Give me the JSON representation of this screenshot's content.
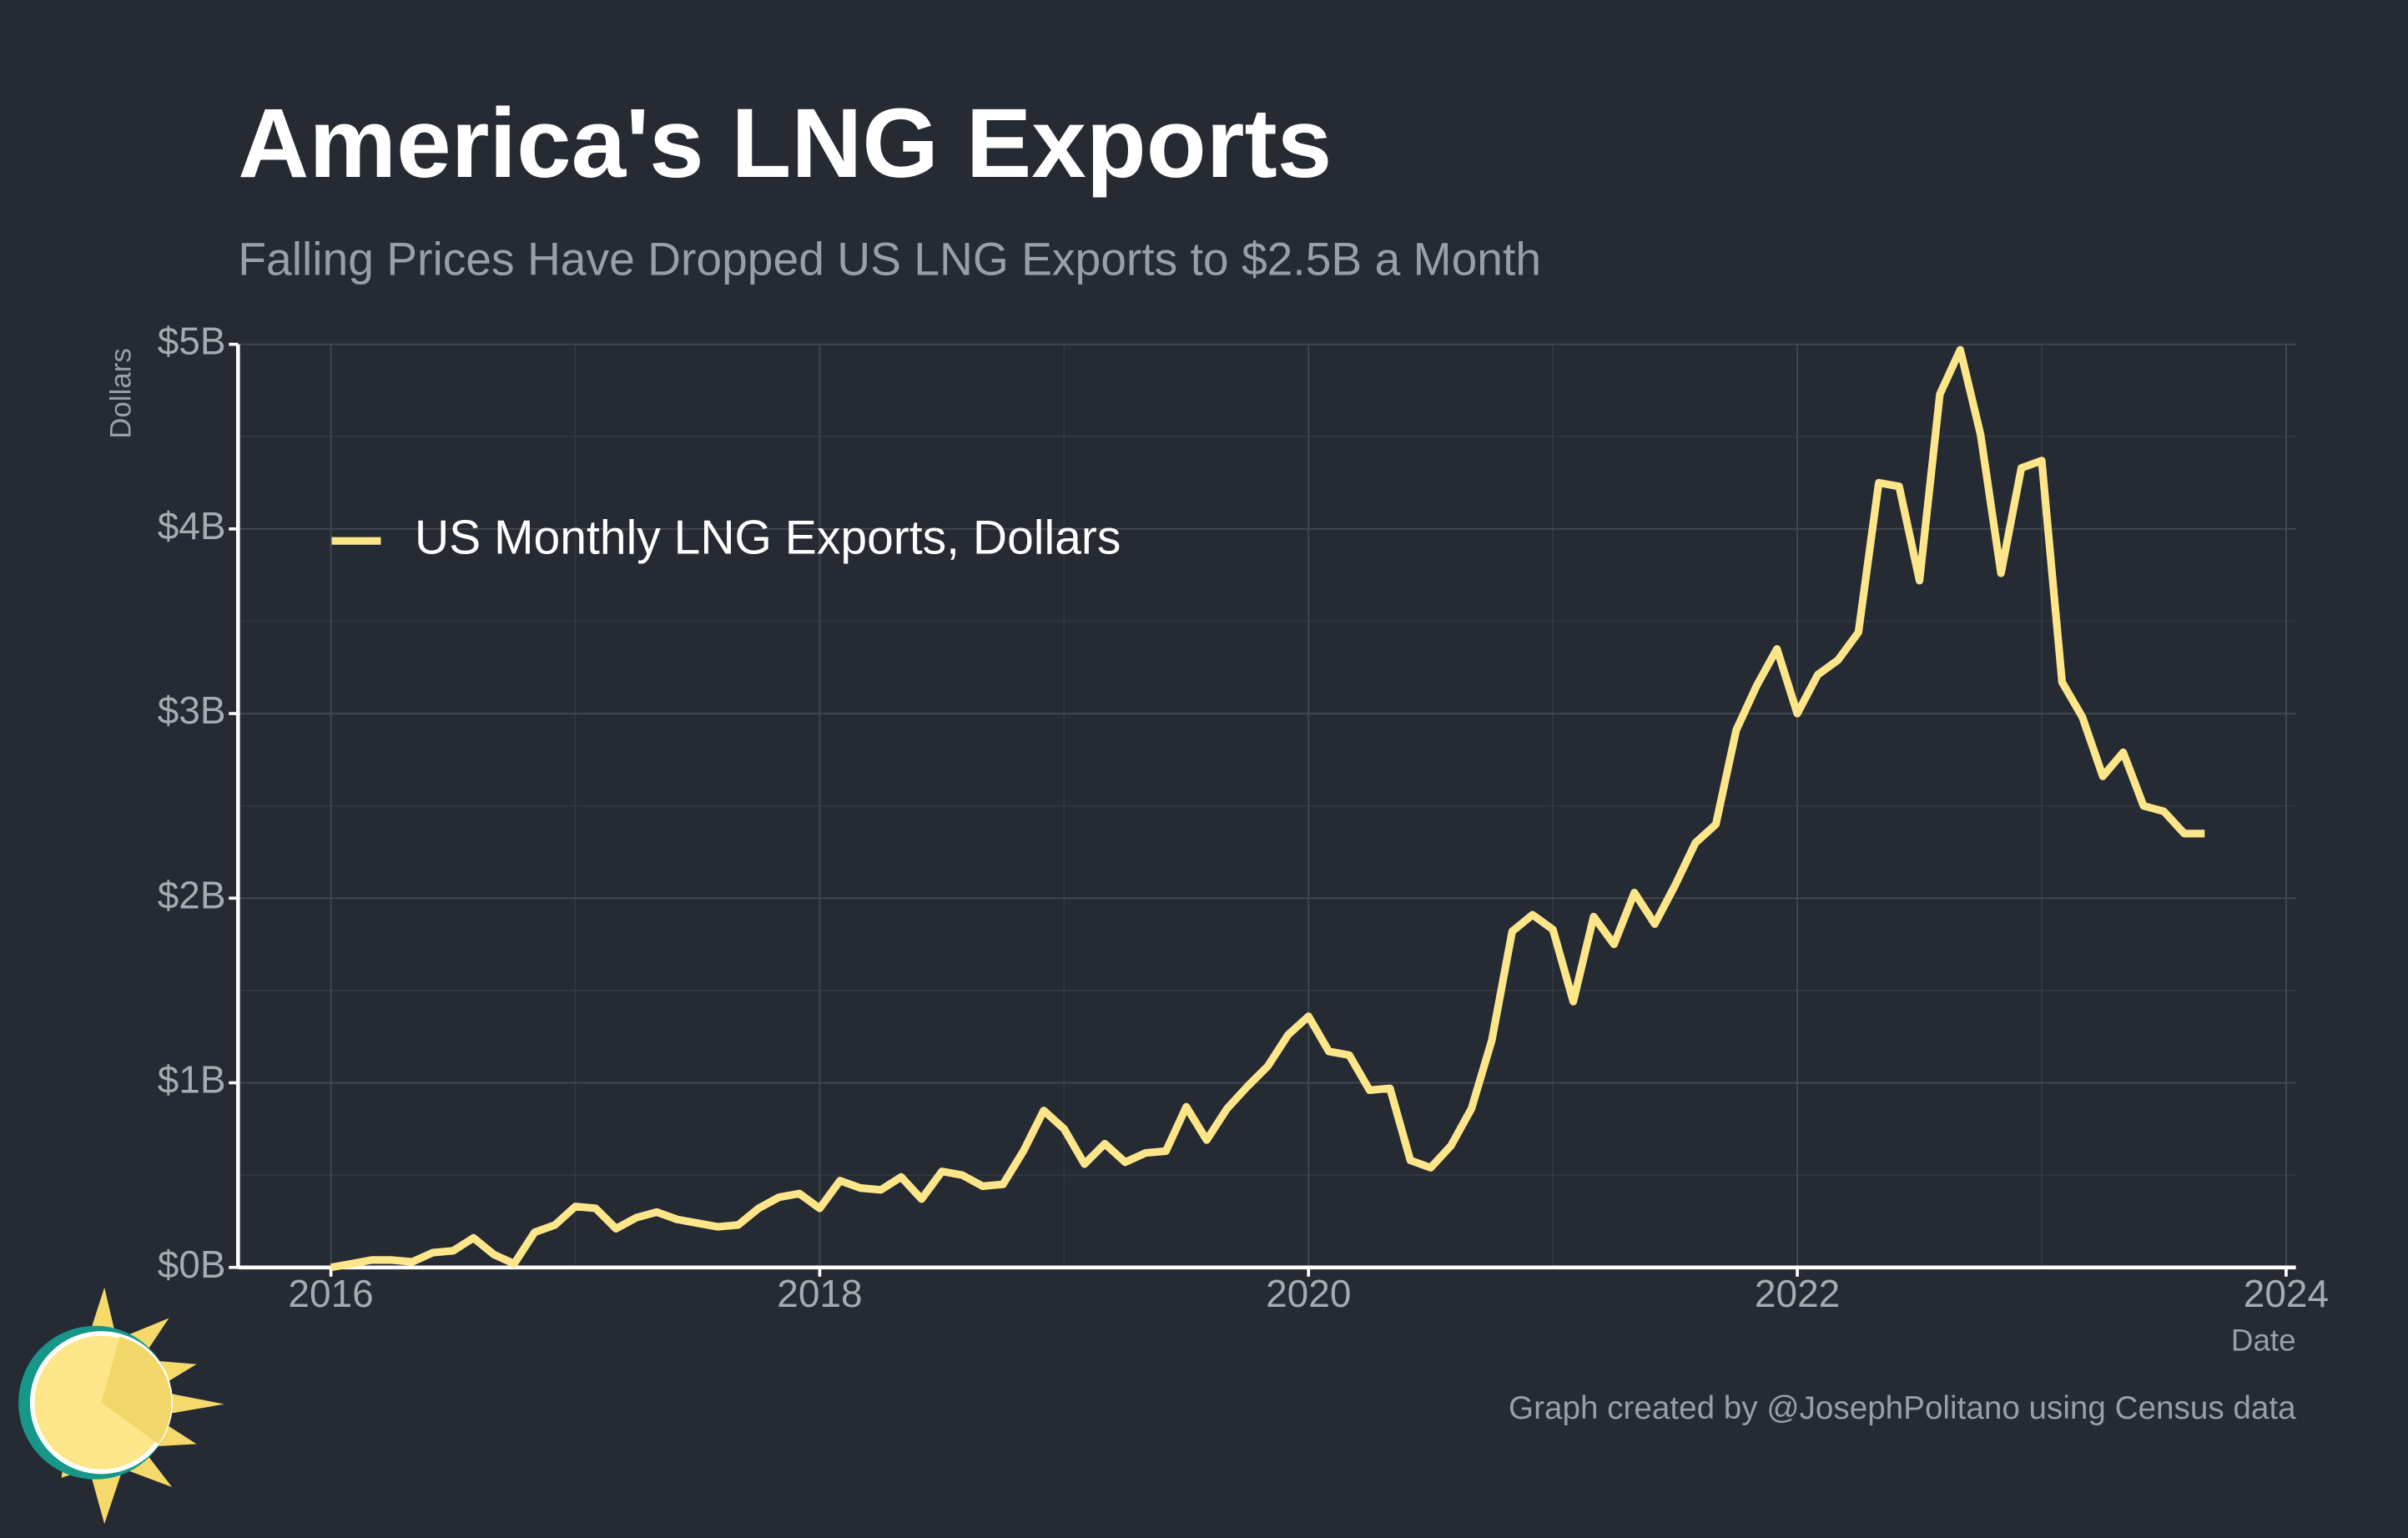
{
  "chart_data": {
    "type": "line",
    "title": "America's LNG Exports",
    "subtitle": "Falling Prices Have Dropped US LNG Exports to $2.5B a Month",
    "y_label": "Dollars",
    "x_label": "Date",
    "credit": "Graph created by @JosephPolitano using Census data",
    "legend_position": "upper left",
    "grid": true,
    "minor_grid": true,
    "xlim": [
      2015.62,
      2024.04
    ],
    "xticks": [
      2016,
      2018,
      2020,
      2022,
      2024
    ],
    "ylim": [
      0,
      5000000000
    ],
    "yticks": [
      {
        "value": 0,
        "label": "$0B"
      },
      {
        "value": 1000000000,
        "label": "$1B"
      },
      {
        "value": 2000000000,
        "label": "$2B"
      },
      {
        "value": 3000000000,
        "label": "$3B"
      },
      {
        "value": 4000000000,
        "label": "$4B"
      },
      {
        "value": 5000000000,
        "label": "$5B"
      }
    ],
    "x": [
      "2016-01",
      "2016-02",
      "2016-03",
      "2016-04",
      "2016-05",
      "2016-06",
      "2016-07",
      "2016-08",
      "2016-09",
      "2016-10",
      "2016-11",
      "2016-12",
      "2017-01",
      "2017-02",
      "2017-03",
      "2017-04",
      "2017-05",
      "2017-06",
      "2017-07",
      "2017-08",
      "2017-09",
      "2017-10",
      "2017-11",
      "2017-12",
      "2018-01",
      "2018-02",
      "2018-03",
      "2018-04",
      "2018-05",
      "2018-06",
      "2018-07",
      "2018-08",
      "2018-09",
      "2018-10",
      "2018-11",
      "2018-12",
      "2019-01",
      "2019-02",
      "2019-03",
      "2019-04",
      "2019-05",
      "2019-06",
      "2019-07",
      "2019-08",
      "2019-09",
      "2019-10",
      "2019-11",
      "2019-12",
      "2020-01",
      "2020-02",
      "2020-03",
      "2020-04",
      "2020-05",
      "2020-06",
      "2020-07",
      "2020-08",
      "2020-09",
      "2020-10",
      "2020-11",
      "2020-12",
      "2021-01",
      "2021-02",
      "2021-03",
      "2021-04",
      "2021-05",
      "2021-06",
      "2021-07",
      "2021-08",
      "2021-09",
      "2021-10",
      "2021-11",
      "2021-12",
      "2022-01",
      "2022-02",
      "2022-03",
      "2022-04",
      "2022-05",
      "2022-06",
      "2022-07",
      "2022-08",
      "2022-09",
      "2022-10",
      "2022-11",
      "2022-12",
      "2023-01",
      "2023-02",
      "2023-03",
      "2023-04",
      "2023-05",
      "2023-06",
      "2023-07",
      "2023-08",
      "2023-09"
    ],
    "series": [
      {
        "name": "US Monthly LNG Exports, Dollars",
        "color": "#fde58a",
        "values": [
          0,
          20000000,
          40000000,
          40000000,
          30000000,
          80000000,
          90000000,
          160000000,
          70000000,
          20000000,
          190000000,
          230000000,
          330000000,
          320000000,
          210000000,
          270000000,
          300000000,
          260000000,
          240000000,
          220000000,
          230000000,
          320000000,
          380000000,
          400000000,
          320000000,
          470000000,
          430000000,
          420000000,
          490000000,
          370000000,
          520000000,
          500000000,
          440000000,
          450000000,
          630000000,
          850000000,
          750000000,
          560000000,
          670000000,
          570000000,
          620000000,
          630000000,
          870000000,
          690000000,
          860000000,
          980000000,
          1090000000,
          1260000000,
          1360000000,
          1170000000,
          1150000000,
          960000000,
          970000000,
          580000000,
          540000000,
          660000000,
          860000000,
          1230000000,
          1820000000,
          1910000000,
          1830000000,
          1440000000,
          1900000000,
          1750000000,
          2030000000,
          1860000000,
          2070000000,
          2300000000,
          2400000000,
          2910000000,
          3150000000,
          3350000000,
          3000000000,
          3210000000,
          3290000000,
          3440000000,
          4250000000,
          4230000000,
          3720000000,
          4730000000,
          4970000000,
          4510000000,
          3760000000,
          4330000000,
          4370000000,
          3170000000,
          2980000000,
          2660000000,
          2790000000,
          2500000000,
          2470000000,
          2350000000,
          2350000000
        ]
      }
    ]
  }
}
